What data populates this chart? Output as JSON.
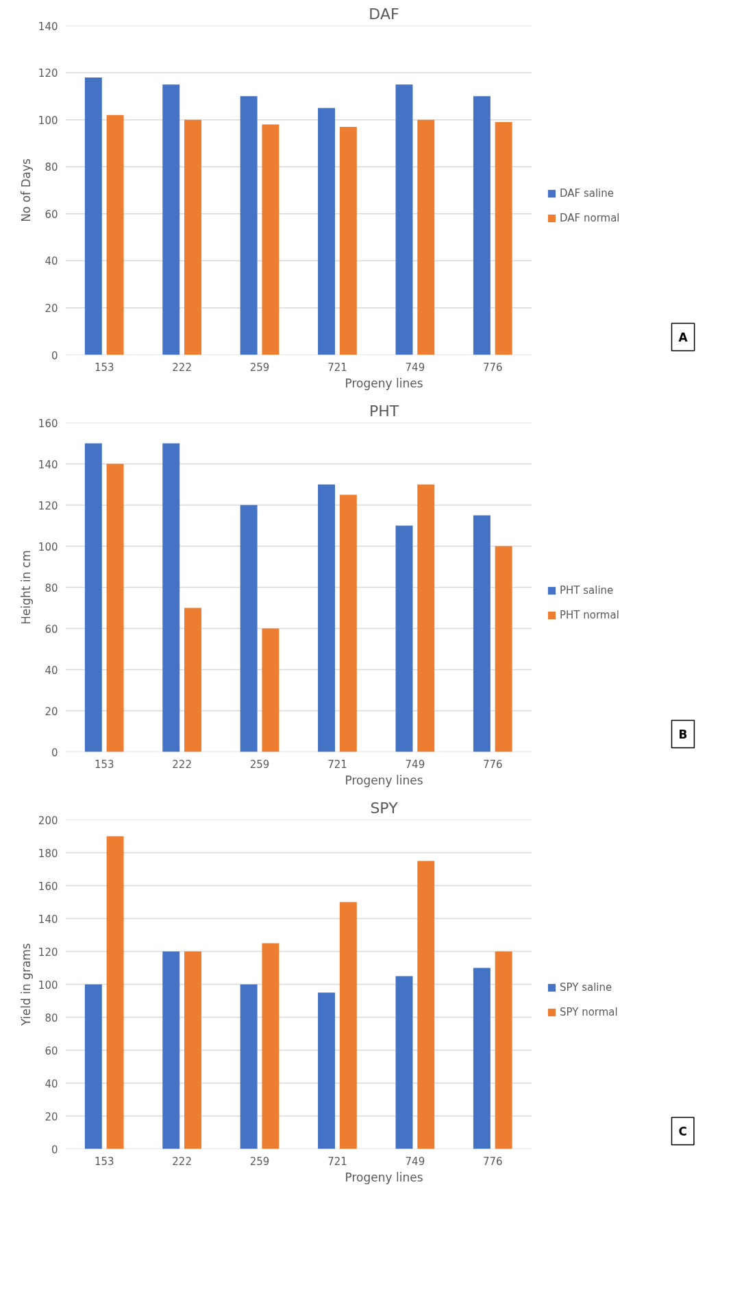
{
  "chart_data": [
    {
      "type": "bar",
      "title": "DAF",
      "xlabel": "Progeny lines",
      "ylabel": "No of Days",
      "categories": [
        "153",
        "222",
        "259",
        "721",
        "749",
        "776"
      ],
      "series": [
        {
          "name": "DAF saline",
          "color": "#4472c4",
          "values": [
            118,
            115,
            110,
            105,
            115,
            110
          ]
        },
        {
          "name": "DAF normal",
          "color": "#ed7d31",
          "values": [
            102,
            100,
            98,
            97,
            100,
            99
          ]
        }
      ],
      "ylim": [
        0,
        140
      ],
      "yticks": [
        0,
        20,
        40,
        60,
        80,
        100,
        120,
        140
      ],
      "grid": "y",
      "legend": "right",
      "annotations": [
        "A"
      ]
    },
    {
      "type": "bar",
      "title": "PHT",
      "xlabel": "Progeny lines",
      "ylabel": "Height in cm",
      "categories": [
        "153",
        "222",
        "259",
        "721",
        "749",
        "776"
      ],
      "series": [
        {
          "name": "PHT saline",
          "color": "#4472c4",
          "values": [
            150,
            150,
            120,
            130,
            110,
            115
          ]
        },
        {
          "name": "PHT normal",
          "color": "#ed7d31",
          "values": [
            140,
            70,
            60,
            125,
            130,
            100
          ]
        }
      ],
      "ylim": [
        0,
        160
      ],
      "yticks": [
        0,
        20,
        40,
        60,
        80,
        100,
        120,
        140,
        160
      ],
      "grid": "y",
      "legend": "right",
      "annotations": [
        "B"
      ]
    },
    {
      "type": "bar",
      "title": "SPY",
      "xlabel": "Progeny lines",
      "ylabel": "Yield in grams",
      "categories": [
        "153",
        "222",
        "259",
        "721",
        "749",
        "776"
      ],
      "series": [
        {
          "name": "SPY saline",
          "color": "#4472c4",
          "values": [
            100,
            120,
            100,
            95,
            105,
            110
          ]
        },
        {
          "name": "SPY normal",
          "color": "#ed7d31",
          "values": [
            190,
            120,
            125,
            150,
            175,
            120
          ]
        }
      ],
      "ylim": [
        0,
        200
      ],
      "yticks": [
        0,
        20,
        40,
        60,
        80,
        100,
        120,
        140,
        160,
        180,
        200
      ],
      "grid": "y",
      "legend": "right",
      "annotations": [
        "C"
      ]
    }
  ]
}
